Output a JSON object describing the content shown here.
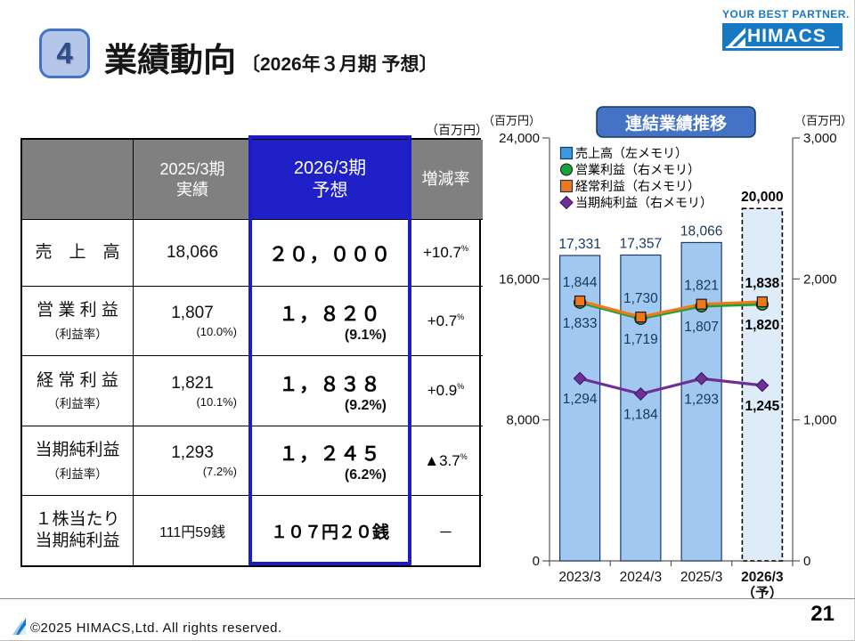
{
  "header": {
    "badge": "4",
    "title": "業績動向",
    "subtitle": "〔2026年３月期 予想〕"
  },
  "logo": {
    "tagline": "YOUR BEST PARTNER.",
    "brand": "HIMACS"
  },
  "table": {
    "unit": "（百万円）",
    "col_actual": {
      "line1": "2025/3期",
      "line2": "実績"
    },
    "col_forecast": {
      "line1": "2026/3期",
      "line2": "予想"
    },
    "col_change": "増減率",
    "rows": [
      {
        "label": "売　上　高",
        "sub": "",
        "actual": "18,066",
        "actual_sub": "",
        "forecast": "２０，０００",
        "forecast_sub": "",
        "change": "+10.7",
        "change_unit": "%"
      },
      {
        "label": "営 業 利 益",
        "sub": "（利益率）",
        "actual": "1,807",
        "actual_sub": "(10.0%)",
        "forecast": "１，８２０",
        "forecast_sub": "(9.1%)",
        "change": "+0.7",
        "change_unit": "%"
      },
      {
        "label": "経 常 利 益",
        "sub": "（利益率）",
        "actual": "1,821",
        "actual_sub": "(10.1%)",
        "forecast": "１，８３８",
        "forecast_sub": "(9.2%)",
        "change": "+0.9",
        "change_unit": "%"
      },
      {
        "label": "当期純利益",
        "sub": "（利益率）",
        "actual": "1,293",
        "actual_sub": "(7.2%)",
        "forecast": "１，２４５",
        "forecast_sub": "(6.2%)",
        "change": "▲3.7",
        "change_unit": "%"
      },
      {
        "label": "１株当たり\n当期純利益",
        "sub": "",
        "actual": "111円59銭",
        "actual_sub": "",
        "forecast": "１０７円２０銭",
        "forecast_sub": "",
        "change": "－",
        "change_unit": ""
      }
    ]
  },
  "chart_data": {
    "type": "bar+line",
    "title": "連結業績推移",
    "unit_left": "（百万円）",
    "unit_right": "（百万円）",
    "categories": [
      "2023/3",
      "2024/3",
      "2025/3",
      "2026/3"
    ],
    "forecast_note": "（予）",
    "forecast_index": 3,
    "left_axis": {
      "min": 0,
      "max": 24000,
      "ticks": [
        0,
        8000,
        16000,
        24000
      ],
      "tick_labels": [
        "0",
        "8,000",
        "16,000",
        "24,000"
      ]
    },
    "right_axis": {
      "min": 0,
      "max": 3000,
      "ticks": [
        0,
        1000,
        2000,
        3000
      ],
      "tick_labels": [
        "0",
        "1,000",
        "2,000",
        "3,000"
      ]
    },
    "bars": {
      "name": "売上高（左メモリ）",
      "axis": "left",
      "values": [
        17331,
        17357,
        18066,
        20000
      ],
      "labels": [
        "17,331",
        "17,357",
        "18,066",
        "20,000"
      ],
      "fill": "#a0c8f0",
      "stroke": "#1f3864",
      "forecast_fill": "#deebf8",
      "legend_fill": "#3e9ae0"
    },
    "series": [
      {
        "name": "営業利益（右メモリ）",
        "axis": "right",
        "marker": "circle",
        "color": "#1aa13c",
        "values": [
          1833,
          1719,
          1807,
          1820
        ],
        "labels": [
          "1,833",
          "1,719",
          "1,807",
          "1,820"
        ],
        "label_side": "below"
      },
      {
        "name": "経常利益（右メモリ）",
        "axis": "right",
        "marker": "square",
        "color": "#f07818",
        "values": [
          1844,
          1730,
          1821,
          1838
        ],
        "labels": [
          "1,844",
          "1,730",
          "1,821",
          "1,838"
        ],
        "label_side": "above"
      },
      {
        "name": "当期純利益（右メモリ）",
        "axis": "right",
        "marker": "diamond",
        "color": "#6e3096",
        "values": [
          1294,
          1184,
          1293,
          1245
        ],
        "labels": [
          "1,294",
          "1,184",
          "1,293",
          "1,245"
        ],
        "label_side": "below"
      }
    ],
    "label_colors": {
      "actual": "#17375e",
      "forecast": "#000000"
    },
    "grid": false,
    "legend_position": "top-left-inside"
  },
  "footer": {
    "copyright": "©2025 HIMACS,Ltd. All rights reserved.",
    "page": "21"
  }
}
